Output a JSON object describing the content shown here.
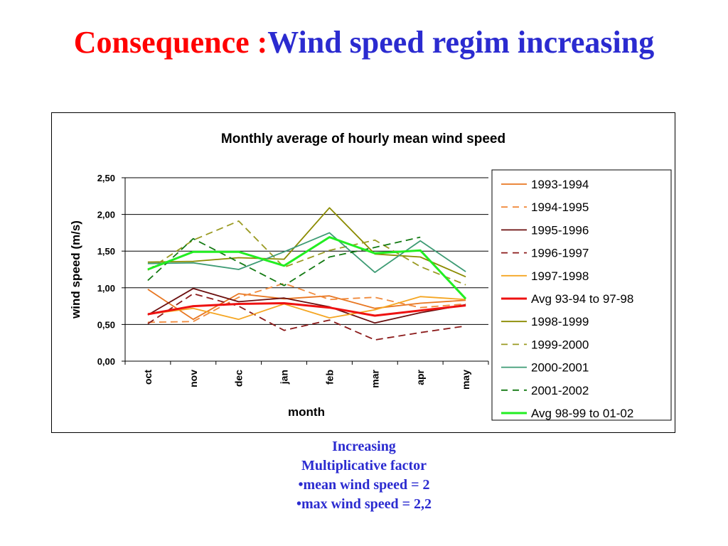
{
  "slide": {
    "title_prefix": "Consequence :",
    "title_main": "Wind speed regim increasing",
    "notes": [
      "Increasing",
      "Multiplicative factor",
      "•mean wind speed = 2",
      "•max wind speed = 2,2"
    ]
  },
  "chart_data": {
    "type": "line",
    "title": "Monthly average of hourly mean wind speed",
    "xlabel": "month",
    "ylabel": "wind speed (m/s)",
    "categories": [
      "oct",
      "nov",
      "dec",
      "jan",
      "feb",
      "mar",
      "apr",
      "may"
    ],
    "ylim": [
      0,
      2.5
    ],
    "yticks": [
      "0,00",
      "0,50",
      "1,00",
      "1,50",
      "2,00",
      "2,50"
    ],
    "grid": true,
    "legend_position": "right",
    "series": [
      {
        "name": "1993-1994",
        "color": "#e87722",
        "dash": "solid",
        "width": "thin",
        "values": [
          0.98,
          0.57,
          0.92,
          0.85,
          0.89,
          0.72,
          0.79,
          0.83
        ]
      },
      {
        "name": "1994-1995",
        "color": "#f08a3c",
        "dash": "dashed",
        "width": "thin",
        "values": [
          0.53,
          0.54,
          0.87,
          1.06,
          0.84,
          0.87,
          0.73,
          0.78
        ]
      },
      {
        "name": "1995-1996",
        "color": "#6b0f0f",
        "dash": "solid",
        "width": "thin",
        "values": [
          0.63,
          0.99,
          0.81,
          0.86,
          0.74,
          0.52,
          0.66,
          0.77
        ]
      },
      {
        "name": "1996-1997",
        "color": "#8b1a1a",
        "dash": "dashed",
        "width": "thin",
        "values": [
          0.51,
          0.92,
          0.75,
          0.42,
          0.56,
          0.29,
          0.39,
          0.48
        ]
      },
      {
        "name": "1997-1998",
        "color": "#f5a623",
        "dash": "solid",
        "width": "thin",
        "values": [
          0.64,
          0.72,
          0.57,
          0.78,
          0.59,
          0.7,
          0.88,
          0.84
        ]
      },
      {
        "name": "Avg 93-94 to 97-98",
        "color": "#ee1111",
        "dash": "solid",
        "width": "thick",
        "values": [
          0.64,
          0.75,
          0.78,
          0.79,
          0.73,
          0.62,
          0.69,
          0.76
        ]
      },
      {
        "name": "1998-1999",
        "color": "#8b8b00",
        "dash": "solid",
        "width": "thin",
        "values": [
          1.35,
          1.36,
          1.41,
          1.39,
          2.09,
          1.46,
          1.42,
          1.15
        ]
      },
      {
        "name": "1999-2000",
        "color": "#9a9a22",
        "dash": "dashed",
        "width": "thin",
        "values": [
          1.24,
          1.65,
          1.91,
          1.28,
          1.51,
          1.65,
          1.29,
          1.04
        ]
      },
      {
        "name": "2000-2001",
        "color": "#3d9b74",
        "dash": "solid",
        "width": "thin",
        "values": [
          1.33,
          1.34,
          1.25,
          1.49,
          1.75,
          1.21,
          1.64,
          1.22
        ]
      },
      {
        "name": "2001-2002",
        "color": "#137a13",
        "dash": "dashed",
        "width": "thin",
        "values": [
          1.1,
          1.67,
          1.35,
          1.03,
          1.42,
          1.55,
          1.69,
          null
        ]
      },
      {
        "name": "Avg 98-99 to 01-02",
        "color": "#22ee22",
        "dash": "solid",
        "width": "thick",
        "values": [
          1.25,
          1.49,
          1.49,
          1.3,
          1.69,
          1.47,
          1.51,
          0.85
        ]
      }
    ]
  }
}
